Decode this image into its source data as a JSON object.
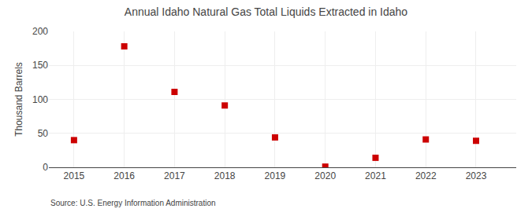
{
  "chart_data": {
    "type": "scatter",
    "title": "Annual Idaho Natural Gas Total Liquids Extracted in Idaho",
    "ylabel": "Thousand Barrels",
    "source": "Source: U.S. Energy Information Administration",
    "x": [
      2015,
      2016,
      2017,
      2018,
      2019,
      2020,
      2021,
      2022,
      2023
    ],
    "values": [
      40,
      178,
      111,
      91,
      44,
      1,
      14,
      41,
      39
    ],
    "color": "#cc0000",
    "marker": "square",
    "xlim": [
      2014.5,
      2023.8
    ],
    "xticks": [
      2015,
      2016,
      2017,
      2018,
      2019,
      2020,
      2021,
      2022,
      2023
    ],
    "ylim": [
      0,
      200
    ],
    "yticks": [
      0,
      50,
      100,
      150,
      200
    ],
    "grid": true
  }
}
